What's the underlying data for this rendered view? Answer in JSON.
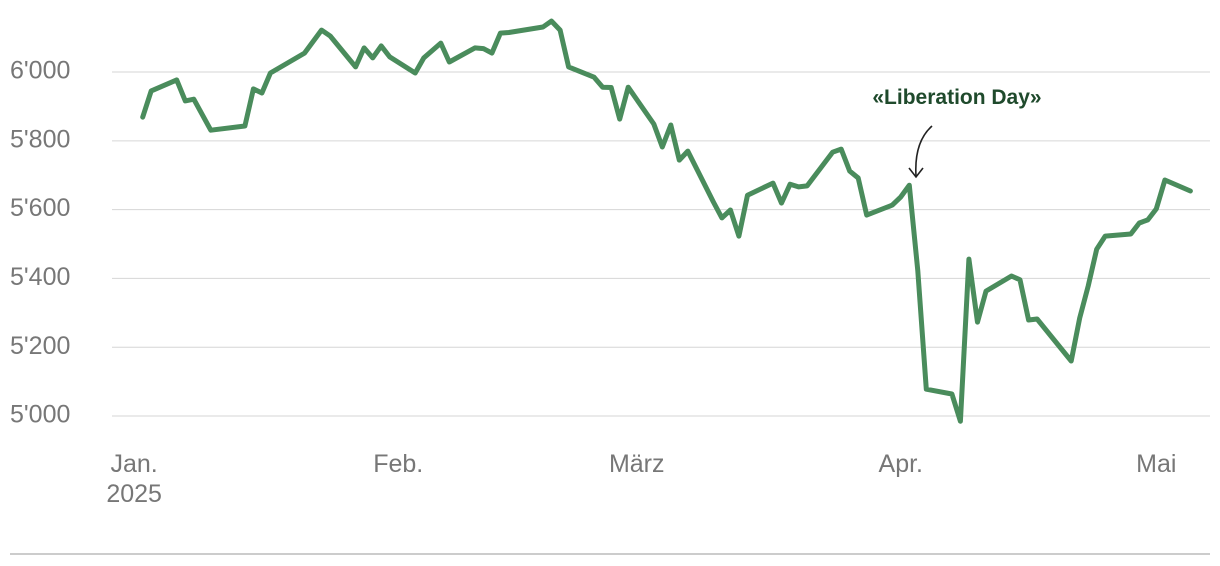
{
  "chart_data": {
    "type": "line",
    "annotation": "«Liberation Day»",
    "x": [
      1,
      2,
      5,
      6,
      7,
      9,
      13,
      14,
      15,
      16,
      20,
      22,
      23,
      26,
      27,
      28,
      29,
      30,
      33,
      34,
      36,
      37,
      40,
      41,
      42,
      43,
      44,
      48,
      49,
      50,
      51,
      54,
      55,
      56,
      57,
      58,
      61,
      62,
      63,
      64,
      65,
      68,
      69,
      70,
      71,
      72,
      75,
      76,
      77,
      78,
      79,
      82,
      83,
      84,
      85,
      86,
      89,
      90,
      91,
      92,
      93,
      96,
      97,
      98,
      99,
      100,
      103,
      104,
      105,
      106,
      110,
      111,
      112,
      113,
      114,
      117,
      118,
      119,
      120,
      121,
      124
    ],
    "values": [
      5869,
      5945,
      5977,
      5916,
      5921,
      5831,
      5843,
      5951,
      5939,
      5997,
      6055,
      6122,
      6105,
      6015,
      6070,
      6041,
      6076,
      6044,
      5997,
      6041,
      6084,
      6029,
      6070,
      6068,
      6055,
      6113,
      6115,
      6131,
      6148,
      6122,
      6015,
      5985,
      5956,
      5955,
      5863,
      5956,
      5849,
      5782,
      5846,
      5744,
      5770,
      5622,
      5576,
      5599,
      5523,
      5642,
      5677,
      5619,
      5674,
      5666,
      5669,
      5767,
      5776,
      5712,
      5692,
      5584,
      5613,
      5637,
      5671,
      5422,
      5078,
      5064,
      4985,
      5456,
      5273,
      5363,
      5407,
      5396,
      5279,
      5282,
      5160,
      5285,
      5378,
      5485,
      5523,
      5529,
      5561,
      5570,
      5602,
      5686,
      5654
    ],
    "color": "#4a8c5c",
    "xlim": [
      -2.6,
      126.3
    ],
    "xticks": [
      {
        "value": 0,
        "label": "Jan. 2025"
      },
      {
        "value": 31,
        "label": "Feb."
      },
      {
        "value": 59,
        "label": "März"
      },
      {
        "value": 90,
        "label": "Apr."
      },
      {
        "value": 120,
        "label": "Mai"
      }
    ],
    "ylim": [
      4950,
      6180
    ],
    "yticks": [
      {
        "value": 5000,
        "label": "5'000"
      },
      {
        "value": 5200,
        "label": "5'200"
      },
      {
        "value": 5400,
        "label": "5'400"
      },
      {
        "value": 5600,
        "label": "5'600"
      },
      {
        "value": 5800,
        "label": "5'800"
      },
      {
        "value": 6000,
        "label": "6'000"
      }
    ],
    "grid": true
  }
}
